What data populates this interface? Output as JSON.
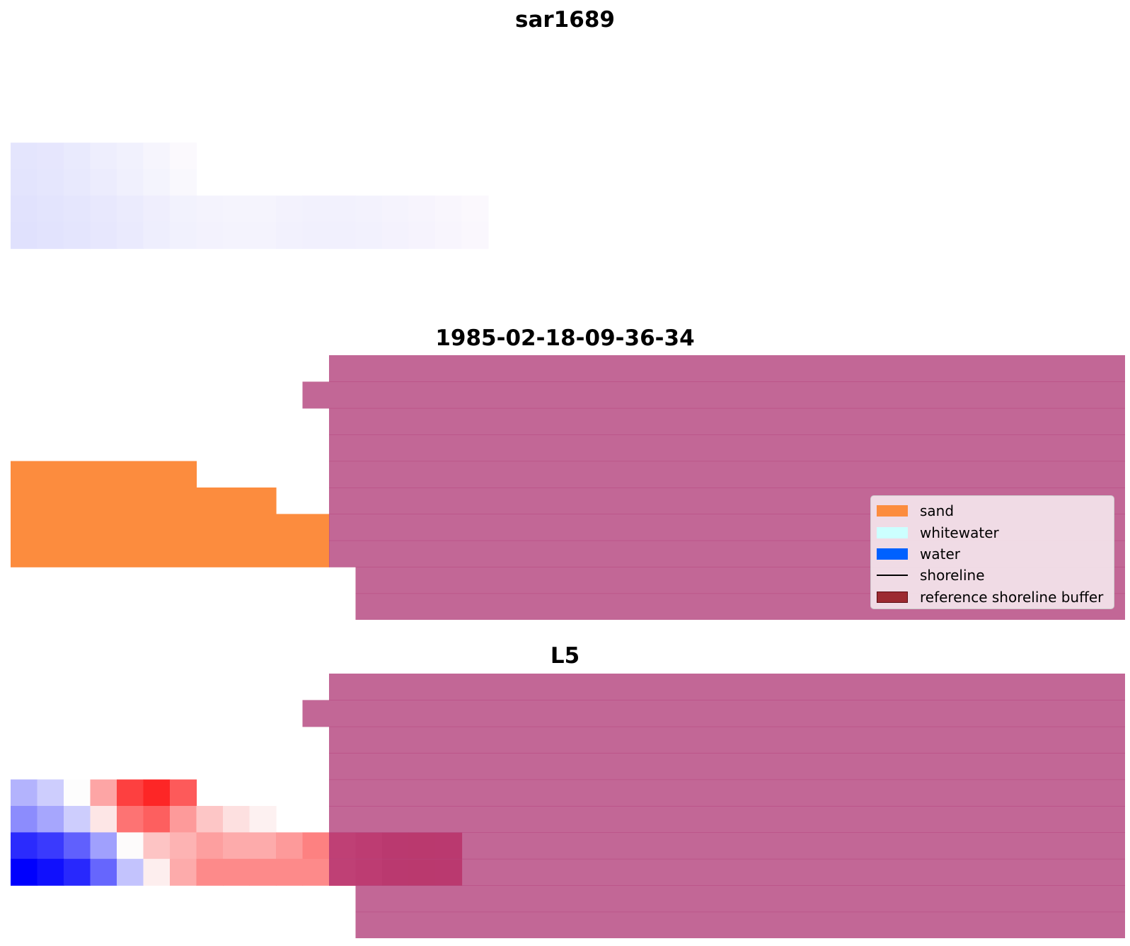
{
  "chart_data": [
    {
      "type": "heatmap",
      "title": "sar1689",
      "grid": false,
      "rows": 10,
      "cols": 42,
      "cells": [
        {
          "r": 4,
          "c": 0,
          "color": "#e4e5fd"
        },
        {
          "r": 4,
          "c": 1,
          "color": "#e6e6fd"
        },
        {
          "r": 4,
          "c": 2,
          "color": "#e9eafd"
        },
        {
          "r": 4,
          "c": 3,
          "color": "#eeeefd"
        },
        {
          "r": 4,
          "c": 4,
          "color": "#f1f1fd"
        },
        {
          "r": 4,
          "c": 5,
          "color": "#f6f5fd"
        },
        {
          "r": 4,
          "c": 6,
          "color": "#fbf9fd"
        },
        {
          "r": 5,
          "c": 0,
          "color": "#e3e4fd"
        },
        {
          "r": 5,
          "c": 1,
          "color": "#e5e6fd"
        },
        {
          "r": 5,
          "c": 2,
          "color": "#e8e9fd"
        },
        {
          "r": 5,
          "c": 3,
          "color": "#ececfd"
        },
        {
          "r": 5,
          "c": 4,
          "color": "#f0f0fd"
        },
        {
          "r": 5,
          "c": 5,
          "color": "#f4f4fd"
        },
        {
          "r": 5,
          "c": 6,
          "color": "#f9f8fd"
        },
        {
          "r": 6,
          "c": 0,
          "color": "#e1e2fd"
        },
        {
          "r": 6,
          "c": 1,
          "color": "#e3e4fd"
        },
        {
          "r": 6,
          "c": 2,
          "color": "#e5e6fd"
        },
        {
          "r": 6,
          "c": 3,
          "color": "#e8e8fd"
        },
        {
          "r": 6,
          "c": 4,
          "color": "#ebebfd"
        },
        {
          "r": 6,
          "c": 5,
          "color": "#efeefd"
        },
        {
          "r": 6,
          "c": 6,
          "color": "#f2f2fd"
        },
        {
          "r": 6,
          "c": 7,
          "color": "#f4f3fd"
        },
        {
          "r": 6,
          "c": 8,
          "color": "#f5f4fd"
        },
        {
          "r": 6,
          "c": 9,
          "color": "#f5f4fd"
        },
        {
          "r": 6,
          "c": 10,
          "color": "#f3f2fd"
        },
        {
          "r": 6,
          "c": 11,
          "color": "#f2f1fd"
        },
        {
          "r": 6,
          "c": 12,
          "color": "#f2f1fd"
        },
        {
          "r": 6,
          "c": 13,
          "color": "#f3f2fd"
        },
        {
          "r": 6,
          "c": 14,
          "color": "#f5f3fd"
        },
        {
          "r": 6,
          "c": 15,
          "color": "#f7f4fd"
        },
        {
          "r": 6,
          "c": 16,
          "color": "#f9f6fd"
        },
        {
          "r": 6,
          "c": 17,
          "color": "#fbf8fd"
        },
        {
          "r": 7,
          "c": 0,
          "color": "#e0e1fd"
        },
        {
          "r": 7,
          "c": 1,
          "color": "#e2e3fd"
        },
        {
          "r": 7,
          "c": 2,
          "color": "#e4e5fd"
        },
        {
          "r": 7,
          "c": 3,
          "color": "#e7e7fd"
        },
        {
          "r": 7,
          "c": 4,
          "color": "#eaeafd"
        },
        {
          "r": 7,
          "c": 5,
          "color": "#eeeefd"
        },
        {
          "r": 7,
          "c": 6,
          "color": "#f1f1fd"
        },
        {
          "r": 7,
          "c": 7,
          "color": "#f3f2fd"
        },
        {
          "r": 7,
          "c": 8,
          "color": "#f4f3fd"
        },
        {
          "r": 7,
          "c": 9,
          "color": "#f4f3fd"
        },
        {
          "r": 7,
          "c": 10,
          "color": "#f2f1fd"
        },
        {
          "r": 7,
          "c": 11,
          "color": "#f1f0fd"
        },
        {
          "r": 7,
          "c": 12,
          "color": "#f1f0fd"
        },
        {
          "r": 7,
          "c": 13,
          "color": "#f2f1fd"
        },
        {
          "r": 7,
          "c": 14,
          "color": "#f4f2fd"
        },
        {
          "r": 7,
          "c": 15,
          "color": "#f6f3fd"
        },
        {
          "r": 7,
          "c": 16,
          "color": "#f8f5fd"
        },
        {
          "r": 7,
          "c": 17,
          "color": "#faf7fd"
        }
      ]
    },
    {
      "type": "heatmap",
      "title": "1985-02-18-09-36-34",
      "grid": false,
      "rows": 10,
      "cols": 42,
      "cells_color": "#fc8c3e",
      "cells": [
        {
          "r": 4,
          "c": 0,
          "w": 7
        },
        {
          "r": 5,
          "c": 0,
          "w": 10
        },
        {
          "r": 6,
          "c": 0,
          "w": 12
        },
        {
          "r": 7,
          "c": 0,
          "w": 12
        }
      ],
      "overlay": {
        "color": "#b5457f",
        "opacity": 0.82,
        "cells": [
          {
            "r": 0,
            "c": 12,
            "w": 30
          },
          {
            "r": 1,
            "c": 11,
            "w": 31
          },
          {
            "r": 2,
            "c": 12,
            "w": 30
          },
          {
            "r": 3,
            "c": 12,
            "w": 30
          },
          {
            "r": 4,
            "c": 12,
            "w": 30
          },
          {
            "r": 5,
            "c": 12,
            "w": 30
          },
          {
            "r": 6,
            "c": 12,
            "w": 30
          },
          {
            "r": 7,
            "c": 12,
            "w": 30
          },
          {
            "r": 8,
            "c": 13,
            "w": 29
          },
          {
            "r": 9,
            "c": 13,
            "w": 29
          }
        ]
      },
      "legend": {
        "position": "lower-right",
        "entries": [
          {
            "label": "sand",
            "kind": "patch",
            "color": "#fc8c3e"
          },
          {
            "label": "whitewater",
            "kind": "patch",
            "color": "#ccffff"
          },
          {
            "label": "water",
            "kind": "patch",
            "color": "#0061ff"
          },
          {
            "label": "shoreline",
            "kind": "line",
            "color": "#000000"
          },
          {
            "label": "reference shoreline buffer",
            "kind": "patch",
            "color": "#9c2a31"
          }
        ]
      }
    },
    {
      "type": "heatmap",
      "title": "L5",
      "grid": false,
      "rows": 10,
      "cols": 42,
      "cells": [
        {
          "r": 4,
          "c": 0,
          "color": "#b3b3fd"
        },
        {
          "r": 4,
          "c": 1,
          "color": "#cdcdfd"
        },
        {
          "r": 4,
          "c": 2,
          "color": "#fdfdfd"
        },
        {
          "r": 4,
          "c": 3,
          "color": "#fda5a5"
        },
        {
          "r": 4,
          "c": 4,
          "color": "#fd4040"
        },
        {
          "r": 4,
          "c": 5,
          "color": "#fd2626"
        },
        {
          "r": 4,
          "c": 6,
          "color": "#fd5a5a"
        },
        {
          "r": 5,
          "c": 0,
          "color": "#8c8cfd"
        },
        {
          "r": 5,
          "c": 1,
          "color": "#a6a6fd"
        },
        {
          "r": 5,
          "c": 2,
          "color": "#cdcdfd"
        },
        {
          "r": 5,
          "c": 3,
          "color": "#fde6e6"
        },
        {
          "r": 5,
          "c": 4,
          "color": "#fd7373"
        },
        {
          "r": 5,
          "c": 5,
          "color": "#fd5f5f"
        },
        {
          "r": 5,
          "c": 6,
          "color": "#fd9a9a"
        },
        {
          "r": 5,
          "c": 7,
          "color": "#fdc6c6"
        },
        {
          "r": 5,
          "c": 8,
          "color": "#fde0e0"
        },
        {
          "r": 5,
          "c": 9,
          "color": "#fdf1f1"
        },
        {
          "r": 6,
          "c": 0,
          "color": "#2b2bfd"
        },
        {
          "r": 6,
          "c": 1,
          "color": "#3a3afd"
        },
        {
          "r": 6,
          "c": 2,
          "color": "#6060fd"
        },
        {
          "r": 6,
          "c": 3,
          "color": "#a0a0fd"
        },
        {
          "r": 6,
          "c": 4,
          "color": "#fdfbfb"
        },
        {
          "r": 6,
          "c": 5,
          "color": "#fdc4c4"
        },
        {
          "r": 6,
          "c": 6,
          "color": "#fdb3b3"
        },
        {
          "r": 6,
          "c": 7,
          "color": "#fd9f9f"
        },
        {
          "r": 6,
          "c": 8,
          "color": "#fdabab"
        },
        {
          "r": 6,
          "c": 9,
          "color": "#fdabab"
        },
        {
          "r": 6,
          "c": 10,
          "color": "#fd9a9a"
        },
        {
          "r": 6,
          "c": 11,
          "color": "#fd8181"
        },
        {
          "r": 6,
          "c": 12,
          "color": "#ec2a4a"
        },
        {
          "r": 6,
          "c": 13,
          "color": "#e0133a"
        },
        {
          "r": 6,
          "c": 14,
          "color": "#d4002a"
        },
        {
          "r": 6,
          "c": 15,
          "color": "#d00024"
        },
        {
          "r": 6,
          "c": 16,
          "color": "#d40028"
        },
        {
          "r": 7,
          "c": 0,
          "color": "#0000fd"
        },
        {
          "r": 7,
          "c": 1,
          "color": "#1010fd"
        },
        {
          "r": 7,
          "c": 2,
          "color": "#2828fd"
        },
        {
          "r": 7,
          "c": 3,
          "color": "#6666fd"
        },
        {
          "r": 7,
          "c": 4,
          "color": "#c3c3fd"
        },
        {
          "r": 7,
          "c": 5,
          "color": "#fdeeee"
        },
        {
          "r": 7,
          "c": 6,
          "color": "#fdabab"
        },
        {
          "r": 7,
          "c": 7,
          "color": "#fd8a8a"
        },
        {
          "r": 7,
          "c": 8,
          "color": "#fd8a8a"
        },
        {
          "r": 7,
          "c": 9,
          "color": "#fd8a8a"
        },
        {
          "r": 7,
          "c": 10,
          "color": "#fd8a8a"
        },
        {
          "r": 7,
          "c": 11,
          "color": "#fd8a8a"
        },
        {
          "r": 7,
          "c": 12,
          "color": "#ec2a4a"
        },
        {
          "r": 7,
          "c": 13,
          "color": "#e0133a"
        },
        {
          "r": 7,
          "c": 14,
          "color": "#d4002a"
        },
        {
          "r": 7,
          "c": 15,
          "color": "#d00024"
        },
        {
          "r": 7,
          "c": 16,
          "color": "#d40028"
        }
      ],
      "overlay": {
        "color": "#b5457f",
        "opacity": 0.82,
        "cells": [
          {
            "r": 0,
            "c": 12,
            "w": 30
          },
          {
            "r": 1,
            "c": 11,
            "w": 31
          },
          {
            "r": 2,
            "c": 12,
            "w": 30
          },
          {
            "r": 3,
            "c": 12,
            "w": 30
          },
          {
            "r": 4,
            "c": 12,
            "w": 30
          },
          {
            "r": 5,
            "c": 12,
            "w": 30
          },
          {
            "r": 6,
            "c": 12,
            "w": 30
          },
          {
            "r": 7,
            "c": 12,
            "w": 30
          },
          {
            "r": 8,
            "c": 13,
            "w": 29
          },
          {
            "r": 9,
            "c": 13,
            "w": 29
          }
        ]
      }
    }
  ]
}
